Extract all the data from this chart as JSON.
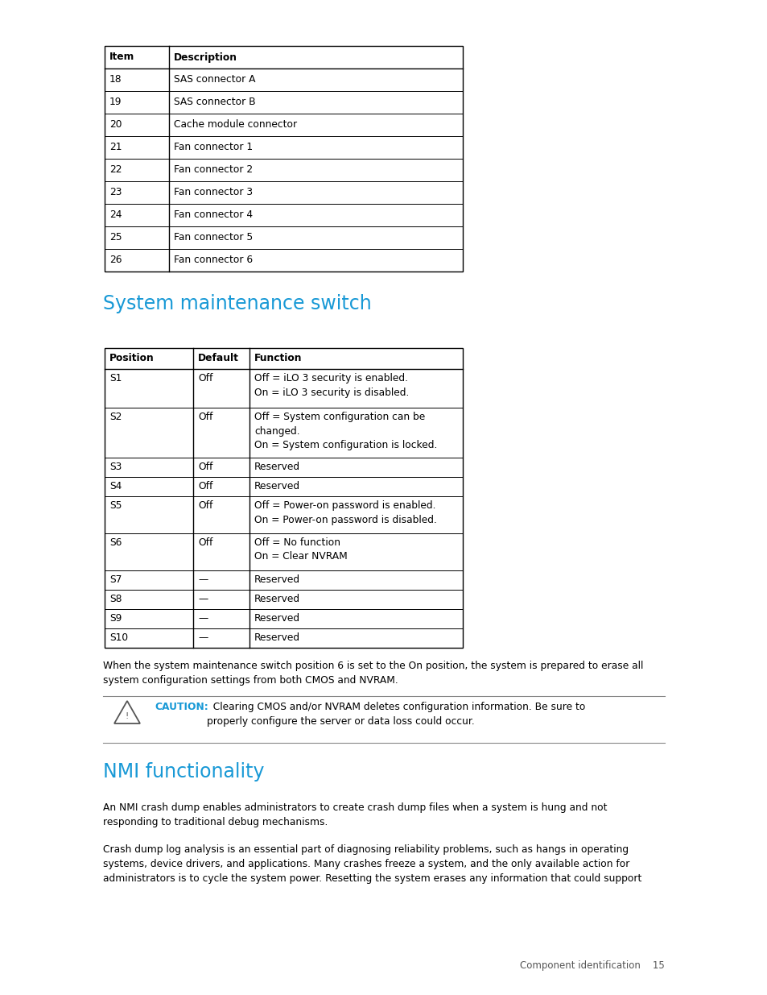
{
  "bg_color": "#ffffff",
  "text_color": "#000000",
  "blue_color": "#1899d6",
  "table_border_color": "#000000",
  "table_line_color": "#000000",
  "gray_line_color": "#999999",
  "table1": {
    "col1_label": "Item",
    "col2_label": "Description",
    "rows": [
      [
        "18",
        "SAS connector A"
      ],
      [
        "19",
        "SAS connector B"
      ],
      [
        "20",
        "Cache module connector"
      ],
      [
        "21",
        "Fan connector 1"
      ],
      [
        "22",
        "Fan connector 2"
      ],
      [
        "23",
        "Fan connector 3"
      ],
      [
        "24",
        "Fan connector 4"
      ],
      [
        "25",
        "Fan connector 5"
      ],
      [
        "26",
        "Fan connector 6"
      ]
    ]
  },
  "section1_title": "System maintenance switch",
  "table2": {
    "col1_label": "Position",
    "col2_label": "Default",
    "col3_label": "Function",
    "rows": [
      [
        "S1",
        "Off",
        "Off = iLO 3 security is enabled.\nOn = iLO 3 security is disabled."
      ],
      [
        "S2",
        "Off",
        "Off = System configuration can be\nchanged.\nOn = System configuration is locked."
      ],
      [
        "S3",
        "Off",
        "Reserved"
      ],
      [
        "S4",
        "Off",
        "Reserved"
      ],
      [
        "S5",
        "Off",
        "Off = Power-on password is enabled.\nOn = Power-on password is disabled."
      ],
      [
        "S6",
        "Off",
        "Off = No function\nOn = Clear NVRAM"
      ],
      [
        "S7",
        "—",
        "Reserved"
      ],
      [
        "S8",
        "—",
        "Reserved"
      ],
      [
        "S9",
        "—",
        "Reserved"
      ],
      [
        "S10",
        "—",
        "Reserved"
      ]
    ]
  },
  "note_text": "When the system maintenance switch position 6 is set to the On position, the system is prepared to erase all\nsystem configuration settings from both CMOS and NVRAM.",
  "caution_bold": "CAUTION:",
  "caution_body": "  Clearing CMOS and/or NVRAM deletes configuration information. Be sure to\nproperly configure the server or data loss could occur.",
  "section2_title": "NMI functionality",
  "nmi_para1": "An NMI crash dump enables administrators to create crash dump files when a system is hung and not\nresponding to traditional debug mechanisms.",
  "nmi_para2": "Crash dump log analysis is an essential part of diagnosing reliability problems, such as hangs in operating\nsystems, device drivers, and applications. Many crashes freeze a system, and the only available action for\nadministrators is to cycle the system power. Resetting the system erases any information that could support",
  "footer_text": "Component identification    15"
}
